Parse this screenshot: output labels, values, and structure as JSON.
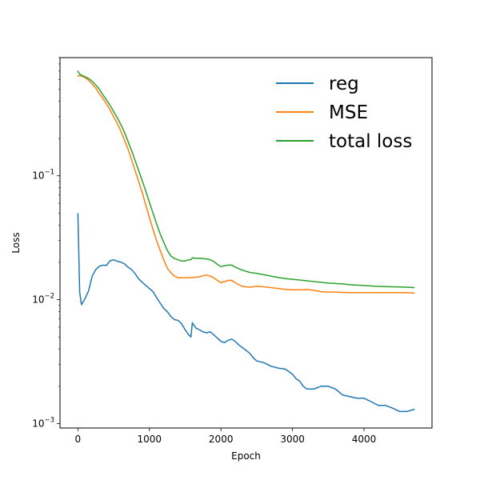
{
  "chart_data": {
    "type": "line",
    "title": "",
    "xlabel": "Epoch",
    "ylabel": "Loss",
    "xlim": [
      -250,
      4950
    ],
    "ylim": [
      0.00092,
      0.9
    ],
    "yscale": "log",
    "x_ticks": [
      {
        "value": 0,
        "label": "0"
      },
      {
        "value": 1000,
        "label": "1000"
      },
      {
        "value": 2000,
        "label": "2000"
      },
      {
        "value": 3000,
        "label": "3000"
      },
      {
        "value": 4000,
        "label": "4000"
      }
    ],
    "y_ticks": [
      {
        "value": 0.001,
        "base": "10",
        "exp": "−3"
      },
      {
        "value": 0.01,
        "base": "10",
        "exp": "−2"
      },
      {
        "value": 0.1,
        "base": "10",
        "exp": "−1"
      }
    ],
    "grid": false,
    "legend_position": "top-right",
    "series": [
      {
        "name": "reg",
        "color": "#1f77b4",
        "points": [
          [
            0,
            0.0495
          ],
          [
            25,
            0.0115
          ],
          [
            50,
            0.0091
          ],
          [
            100,
            0.0102
          ],
          [
            150,
            0.0118
          ],
          [
            200,
            0.0155
          ],
          [
            250,
            0.0175
          ],
          [
            300,
            0.0186
          ],
          [
            350,
            0.019
          ],
          [
            400,
            0.0189
          ],
          [
            450,
            0.0206
          ],
          [
            500,
            0.021
          ],
          [
            550,
            0.0204
          ],
          [
            600,
            0.0201
          ],
          [
            650,
            0.0195
          ],
          [
            700,
            0.0183
          ],
          [
            750,
            0.0175
          ],
          [
            800,
            0.0162
          ],
          [
            850,
            0.0147
          ],
          [
            900,
            0.0138
          ],
          [
            1000,
            0.0123
          ],
          [
            1050,
            0.0116
          ],
          [
            1100,
            0.0104
          ],
          [
            1150,
            0.0094
          ],
          [
            1200,
            0.0085
          ],
          [
            1250,
            0.008
          ],
          [
            1300,
            0.0073
          ],
          [
            1350,
            0.0069
          ],
          [
            1400,
            0.0068
          ],
          [
            1450,
            0.0064
          ],
          [
            1500,
            0.0057
          ],
          [
            1550,
            0.0052
          ],
          [
            1580,
            0.005
          ],
          [
            1600,
            0.0065
          ],
          [
            1650,
            0.0059
          ],
          [
            1700,
            0.0057
          ],
          [
            1750,
            0.0055
          ],
          [
            1800,
            0.0054
          ],
          [
            1850,
            0.0055
          ],
          [
            1900,
            0.0052
          ],
          [
            1950,
            0.0049
          ],
          [
            2000,
            0.0046
          ],
          [
            2050,
            0.0045
          ],
          [
            2100,
            0.0047
          ],
          [
            2150,
            0.0048
          ],
          [
            2200,
            0.0046
          ],
          [
            2250,
            0.0043
          ],
          [
            2300,
            0.0041
          ],
          [
            2350,
            0.0039
          ],
          [
            2400,
            0.0037
          ],
          [
            2450,
            0.0034
          ],
          [
            2500,
            0.0032
          ],
          [
            2600,
            0.0031
          ],
          [
            2700,
            0.0029
          ],
          [
            2800,
            0.0028
          ],
          [
            2900,
            0.00275
          ],
          [
            3000,
            0.0025
          ],
          [
            3050,
            0.0023
          ],
          [
            3100,
            0.0022
          ],
          [
            3150,
            0.002
          ],
          [
            3200,
            0.0019
          ],
          [
            3300,
            0.0019
          ],
          [
            3400,
            0.002
          ],
          [
            3500,
            0.002
          ],
          [
            3600,
            0.0019
          ],
          [
            3700,
            0.0017
          ],
          [
            3800,
            0.00165
          ],
          [
            3900,
            0.0016
          ],
          [
            4000,
            0.0016
          ],
          [
            4100,
            0.0015
          ],
          [
            4200,
            0.0014
          ],
          [
            4300,
            0.0014
          ],
          [
            4400,
            0.00133
          ],
          [
            4500,
            0.00125
          ],
          [
            4600,
            0.00125
          ],
          [
            4700,
            0.0013
          ]
        ]
      },
      {
        "name": "MSE",
        "color": "#ff7f0e",
        "points": [
          [
            0,
            0.64
          ],
          [
            50,
            0.64
          ],
          [
            100,
            0.62
          ],
          [
            150,
            0.59
          ],
          [
            200,
            0.55
          ],
          [
            250,
            0.51
          ],
          [
            300,
            0.46
          ],
          [
            350,
            0.42
          ],
          [
            400,
            0.38
          ],
          [
            450,
            0.34
          ],
          [
            500,
            0.3
          ],
          [
            550,
            0.265
          ],
          [
            600,
            0.23
          ],
          [
            650,
            0.195
          ],
          [
            700,
            0.165
          ],
          [
            750,
            0.135
          ],
          [
            800,
            0.11
          ],
          [
            850,
            0.09
          ],
          [
            900,
            0.073
          ],
          [
            950,
            0.058
          ],
          [
            1000,
            0.046
          ],
          [
            1050,
            0.037
          ],
          [
            1100,
            0.03
          ],
          [
            1150,
            0.025
          ],
          [
            1200,
            0.021
          ],
          [
            1250,
            0.018
          ],
          [
            1300,
            0.0165
          ],
          [
            1350,
            0.0155
          ],
          [
            1400,
            0.015
          ],
          [
            1500,
            0.015
          ],
          [
            1600,
            0.0151
          ],
          [
            1700,
            0.0153
          ],
          [
            1750,
            0.0156
          ],
          [
            1800,
            0.0158
          ],
          [
            1850,
            0.0155
          ],
          [
            1900,
            0.015
          ],
          [
            1950,
            0.0143
          ],
          [
            2000,
            0.0137
          ],
          [
            2100,
            0.0143
          ],
          [
            2150,
            0.0143
          ],
          [
            2200,
            0.0137
          ],
          [
            2250,
            0.0132
          ],
          [
            2300,
            0.0128
          ],
          [
            2400,
            0.0126
          ],
          [
            2500,
            0.0128
          ],
          [
            2600,
            0.0127
          ],
          [
            2700,
            0.0125
          ],
          [
            2800,
            0.0123
          ],
          [
            2900,
            0.0121
          ],
          [
            3000,
            0.012
          ],
          [
            3100,
            0.012
          ],
          [
            3200,
            0.0121
          ],
          [
            3300,
            0.0119
          ],
          [
            3400,
            0.0116
          ],
          [
            3500,
            0.0115
          ],
          [
            3600,
            0.0115
          ],
          [
            3800,
            0.0114
          ],
          [
            4000,
            0.0114
          ],
          [
            4200,
            0.0114
          ],
          [
            4400,
            0.0114
          ],
          [
            4600,
            0.0114
          ],
          [
            4700,
            0.0113
          ]
        ]
      },
      {
        "name": "total loss",
        "color": "#2ca02c",
        "points": [
          [
            0,
            0.7
          ],
          [
            25,
            0.66
          ],
          [
            100,
            0.63
          ],
          [
            150,
            0.61
          ],
          [
            200,
            0.58
          ],
          [
            250,
            0.54
          ],
          [
            300,
            0.5
          ],
          [
            350,
            0.45
          ],
          [
            400,
            0.41
          ],
          [
            450,
            0.37
          ],
          [
            500,
            0.33
          ],
          [
            550,
            0.295
          ],
          [
            600,
            0.26
          ],
          [
            650,
            0.225
          ],
          [
            700,
            0.19
          ],
          [
            750,
            0.16
          ],
          [
            800,
            0.133
          ],
          [
            850,
            0.11
          ],
          [
            900,
            0.091
          ],
          [
            950,
            0.075
          ],
          [
            1000,
            0.061
          ],
          [
            1050,
            0.05
          ],
          [
            1100,
            0.041
          ],
          [
            1150,
            0.034
          ],
          [
            1200,
            0.029
          ],
          [
            1250,
            0.025
          ],
          [
            1300,
            0.0225
          ],
          [
            1350,
            0.0215
          ],
          [
            1400,
            0.021
          ],
          [
            1450,
            0.0205
          ],
          [
            1500,
            0.0205
          ],
          [
            1550,
            0.021
          ],
          [
            1580,
            0.021
          ],
          [
            1600,
            0.0218
          ],
          [
            1650,
            0.0215
          ],
          [
            1700,
            0.0216
          ],
          [
            1800,
            0.0213
          ],
          [
            1850,
            0.021
          ],
          [
            1900,
            0.0203
          ],
          [
            1950,
            0.0193
          ],
          [
            2000,
            0.0185
          ],
          [
            2100,
            0.019
          ],
          [
            2150,
            0.019
          ],
          [
            2200,
            0.0183
          ],
          [
            2300,
            0.0173
          ],
          [
            2400,
            0.0166
          ],
          [
            2500,
            0.0163
          ],
          [
            2600,
            0.0159
          ],
          [
            2700,
            0.0155
          ],
          [
            2800,
            0.0151
          ],
          [
            2900,
            0.0148
          ],
          [
            3000,
            0.0146
          ],
          [
            3100,
            0.0144
          ],
          [
            3200,
            0.0142
          ],
          [
            3300,
            0.014
          ],
          [
            3400,
            0.0138
          ],
          [
            3500,
            0.0136
          ],
          [
            3600,
            0.0135
          ],
          [
            3700,
            0.0134
          ],
          [
            3800,
            0.0132
          ],
          [
            4000,
            0.013
          ],
          [
            4200,
            0.0128
          ],
          [
            4400,
            0.0127
          ],
          [
            4600,
            0.0126
          ],
          [
            4700,
            0.0125
          ]
        ]
      }
    ]
  }
}
